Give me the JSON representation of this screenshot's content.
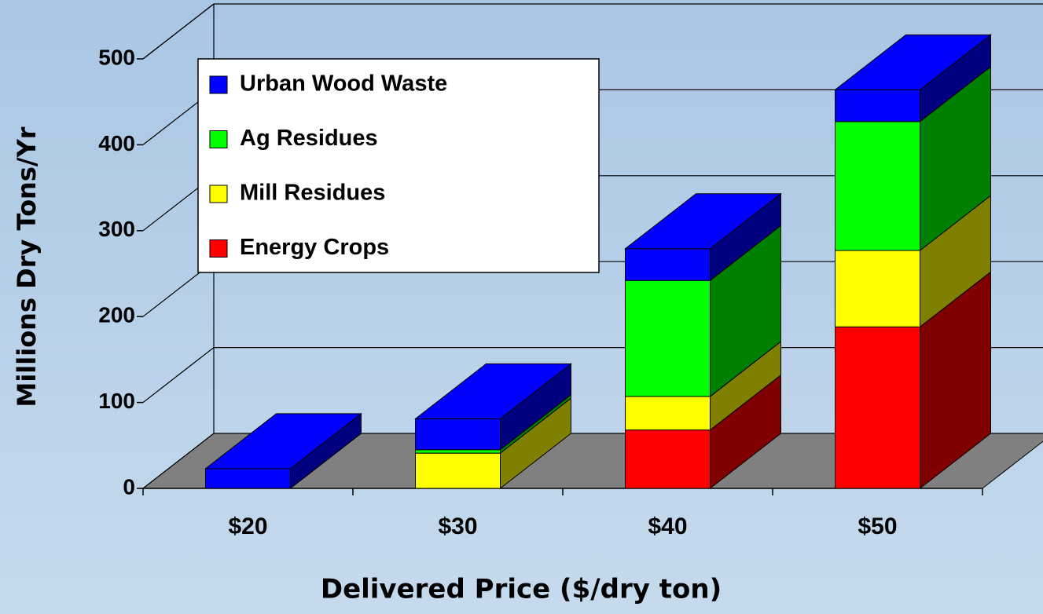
{
  "chart_data": {
    "type": "bar3d_stacked",
    "x_label": "Delivered Price ($/dry ton)",
    "y_label": "Millions Dry Tons/Yr",
    "categories": [
      "$20",
      "$30",
      "$40",
      "$50"
    ],
    "series": [
      {
        "name": "Energy Crops",
        "color": "#ff0000",
        "side_color": "#800000",
        "values": [
          0,
          0,
          68,
          188
        ]
      },
      {
        "name": "Mill Residues",
        "color": "#ffff00",
        "side_color": "#808000",
        "values": [
          0,
          41,
          39,
          89
        ]
      },
      {
        "name": "Ag Residues",
        "color": "#00ff00",
        "side_color": "#008000",
        "values": [
          0,
          4,
          135,
          150
        ]
      },
      {
        "name": "Urban Wood Waste",
        "color": "#0000ff",
        "side_color": "#000080",
        "values": [
          23,
          36,
          37,
          37
        ]
      }
    ],
    "ylim": [
      0,
      500
    ],
    "yticks": [
      0,
      100,
      200,
      300,
      400,
      500
    ],
    "grid": true,
    "legend": "upper left"
  }
}
